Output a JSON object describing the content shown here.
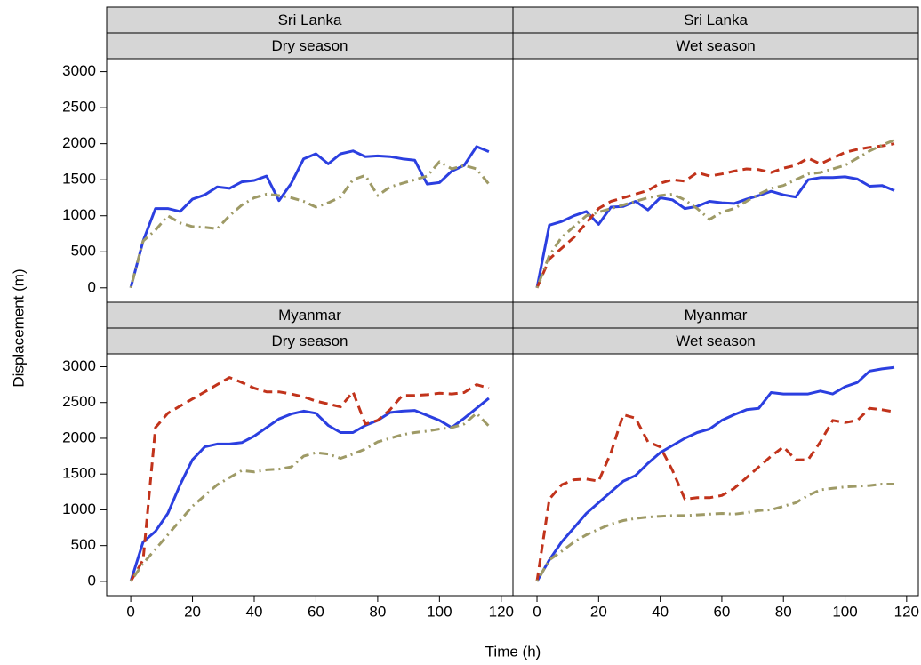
{
  "xlabel": "Time (h)",
  "ylabel": "Displacement (m)",
  "chart_data": [
    {
      "type": "line",
      "strips": [
        "Sri Lanka",
        "Dry season"
      ],
      "x": [
        0,
        4,
        8,
        12,
        16,
        20,
        24,
        28,
        32,
        36,
        40,
        44,
        48,
        52,
        56,
        60,
        64,
        68,
        72,
        76,
        80,
        84,
        88,
        92,
        96,
        100,
        104,
        108,
        112,
        116
      ],
      "xlim": [
        -7.8,
        123.8
      ],
      "ylim": [
        -200,
        3180
      ],
      "yticks": [
        0,
        500,
        1000,
        1500,
        2000,
        2500,
        3000
      ],
      "series": [
        {
          "color": "#2b3fe0",
          "dash": "solid",
          "values": [
            0,
            650,
            1100,
            1100,
            1060,
            1230,
            1290,
            1400,
            1380,
            1470,
            1490,
            1550,
            1210,
            1450,
            1790,
            1860,
            1720,
            1860,
            1900,
            1820,
            1830,
            1820,
            1790,
            1770,
            1440,
            1460,
            1620,
            1700,
            1960,
            1890
          ]
        },
        {
          "color": "#9e9a66",
          "dash": "dotdash",
          "values": [
            0,
            650,
            800,
            1000,
            900,
            850,
            840,
            820,
            1000,
            1150,
            1250,
            1300,
            1280,
            1250,
            1200,
            1120,
            1180,
            1260,
            1500,
            1560,
            1280,
            1400,
            1450,
            1500,
            1550,
            1750,
            1650,
            1700,
            1650,
            1440
          ]
        }
      ]
    },
    {
      "type": "line",
      "strips": [
        "Sri Lanka",
        "Wet season"
      ],
      "x": [
        0,
        4,
        8,
        12,
        16,
        20,
        24,
        28,
        32,
        36,
        40,
        44,
        48,
        52,
        56,
        60,
        64,
        68,
        72,
        76,
        80,
        84,
        88,
        92,
        96,
        100,
        104,
        108,
        112,
        116
      ],
      "xlim": [
        -7.8,
        123.8
      ],
      "ylim": [
        -200,
        3180
      ],
      "series": [
        {
          "color": "#2b3fe0",
          "dash": "solid",
          "values": [
            0,
            870,
            920,
            1000,
            1060,
            880,
            1120,
            1130,
            1200,
            1080,
            1250,
            1220,
            1100,
            1130,
            1200,
            1180,
            1170,
            1230,
            1280,
            1340,
            1290,
            1260,
            1500,
            1530,
            1530,
            1540,
            1510,
            1410,
            1420,
            1350
          ]
        },
        {
          "color": "#c1331b",
          "dash": "dashed",
          "values": [
            0,
            400,
            550,
            700,
            900,
            1100,
            1200,
            1250,
            1300,
            1350,
            1450,
            1500,
            1480,
            1600,
            1550,
            1580,
            1620,
            1650,
            1640,
            1600,
            1660,
            1700,
            1800,
            1720,
            1800,
            1880,
            1920,
            1950,
            1970,
            2000
          ]
        },
        {
          "color": "#9e9a66",
          "dash": "dotdash",
          "values": [
            0,
            450,
            700,
            850,
            1000,
            1050,
            1100,
            1150,
            1200,
            1250,
            1280,
            1300,
            1220,
            1100,
            950,
            1050,
            1100,
            1200,
            1300,
            1380,
            1420,
            1500,
            1580,
            1600,
            1650,
            1700,
            1800,
            1900,
            1980,
            2050
          ]
        }
      ]
    },
    {
      "type": "line",
      "strips": [
        "Myanmar",
        "Dry season"
      ],
      "x": [
        0,
        4,
        8,
        12,
        16,
        20,
        24,
        28,
        32,
        36,
        40,
        44,
        48,
        52,
        56,
        60,
        64,
        68,
        72,
        76,
        80,
        84,
        88,
        92,
        96,
        100,
        104,
        108,
        112,
        116
      ],
      "xlim": [
        -7.8,
        123.8
      ],
      "ylim": [
        -200,
        3180
      ],
      "xticks": [
        0,
        20,
        40,
        60,
        80,
        100,
        120
      ],
      "yticks": [
        0,
        500,
        1000,
        1500,
        2000,
        2500,
        3000
      ],
      "series": [
        {
          "color": "#2b3fe0",
          "dash": "solid",
          "values": [
            0,
            550,
            700,
            950,
            1350,
            1700,
            1880,
            1920,
            1920,
            1940,
            2030,
            2150,
            2270,
            2340,
            2380,
            2350,
            2180,
            2080,
            2080,
            2180,
            2250,
            2360,
            2380,
            2390,
            2320,
            2250,
            2150,
            2280,
            2420,
            2560
          ]
        },
        {
          "color": "#c1331b",
          "dash": "dashed",
          "values": [
            0,
            300,
            2150,
            2350,
            2450,
            2550,
            2650,
            2750,
            2850,
            2780,
            2700,
            2650,
            2650,
            2620,
            2580,
            2520,
            2480,
            2440,
            2650,
            2200,
            2250,
            2400,
            2600,
            2600,
            2610,
            2630,
            2620,
            2640,
            2750,
            2700
          ]
        },
        {
          "color": "#9e9a66",
          "dash": "dotdash",
          "values": [
            0,
            250,
            450,
            650,
            850,
            1050,
            1200,
            1350,
            1450,
            1550,
            1530,
            1560,
            1570,
            1600,
            1750,
            1800,
            1780,
            1720,
            1780,
            1850,
            1950,
            2000,
            2050,
            2080,
            2100,
            2130,
            2150,
            2200,
            2350,
            2170
          ]
        }
      ]
    },
    {
      "type": "line",
      "strips": [
        "Myanmar",
        "Wet season"
      ],
      "x": [
        0,
        4,
        8,
        12,
        16,
        20,
        24,
        28,
        32,
        36,
        40,
        44,
        48,
        52,
        56,
        60,
        64,
        68,
        72,
        76,
        80,
        84,
        88,
        92,
        96,
        100,
        104,
        108,
        112,
        116
      ],
      "xlim": [
        -7.8,
        123.8
      ],
      "ylim": [
        -200,
        3180
      ],
      "xticks": [
        0,
        20,
        40,
        60,
        80,
        100,
        120
      ],
      "series": [
        {
          "color": "#2b3fe0",
          "dash": "solid",
          "values": [
            0,
            300,
            550,
            750,
            950,
            1100,
            1250,
            1400,
            1480,
            1650,
            1800,
            1900,
            2000,
            2080,
            2130,
            2250,
            2330,
            2400,
            2420,
            2640,
            2620,
            2620,
            2620,
            2660,
            2620,
            2720,
            2780,
            2940,
            2970,
            2990
          ]
        },
        {
          "color": "#c1331b",
          "dash": "dashed",
          "values": [
            0,
            1150,
            1350,
            1420,
            1430,
            1400,
            1800,
            2330,
            2280,
            1950,
            1880,
            1550,
            1150,
            1170,
            1170,
            1200,
            1300,
            1450,
            1600,
            1750,
            1880,
            1700,
            1700,
            1950,
            2250,
            2220,
            2250,
            2420,
            2400,
            2370
          ]
        },
        {
          "color": "#9e9a66",
          "dash": "dotdash",
          "values": [
            0,
            300,
            420,
            550,
            650,
            730,
            800,
            850,
            880,
            900,
            910,
            920,
            920,
            930,
            940,
            950,
            940,
            960,
            990,
            1000,
            1050,
            1100,
            1200,
            1280,
            1300,
            1320,
            1330,
            1340,
            1360,
            1360
          ]
        }
      ]
    }
  ]
}
